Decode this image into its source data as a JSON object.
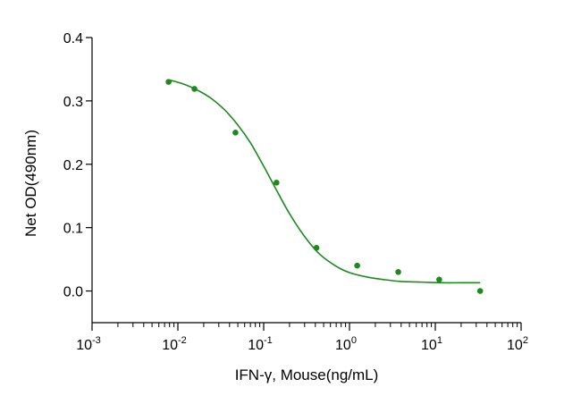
{
  "chart_data": {
    "type": "scatter",
    "xlabel": "IFN-γ, Mouse(ng/mL)",
    "ylabel": "Net OD(490nm)",
    "x_scale": "log",
    "xlim": [
      0.001,
      100
    ],
    "ylim": [
      -0.05,
      0.4
    ],
    "x_ticks": [
      {
        "base": "10",
        "exp": "-3",
        "value": 0.001
      },
      {
        "base": "10",
        "exp": "-2",
        "value": 0.01
      },
      {
        "base": "10",
        "exp": "-1",
        "value": 0.1
      },
      {
        "base": "10",
        "exp": "0",
        "value": 1
      },
      {
        "base": "10",
        "exp": "1",
        "value": 10
      },
      {
        "base": "10",
        "exp": "2",
        "value": 100
      }
    ],
    "y_ticks": [
      {
        "label": "0.0",
        "value": 0.0
      },
      {
        "label": "0.1",
        "value": 0.1
      },
      {
        "label": "0.2",
        "value": 0.2
      },
      {
        "label": "0.3",
        "value": 0.3
      },
      {
        "label": "0.4",
        "value": 0.4
      }
    ],
    "color": "#1e8a1e",
    "points": [
      {
        "x": 0.0078,
        "y": 0.33
      },
      {
        "x": 0.0156,
        "y": 0.319
      },
      {
        "x": 0.0469,
        "y": 0.25
      },
      {
        "x": 0.141,
        "y": 0.171
      },
      {
        "x": 0.412,
        "y": 0.068
      },
      {
        "x": 1.23,
        "y": 0.04
      },
      {
        "x": 3.7,
        "y": 0.03
      },
      {
        "x": 11.1,
        "y": 0.018
      },
      {
        "x": 33.3,
        "y": 0.0
      }
    ],
    "fit_curve": [
      {
        "x": 0.008,
        "y": 0.333
      },
      {
        "x": 0.012,
        "y": 0.326
      },
      {
        "x": 0.018,
        "y": 0.315
      },
      {
        "x": 0.025,
        "y": 0.303
      },
      {
        "x": 0.035,
        "y": 0.286
      },
      {
        "x": 0.05,
        "y": 0.262
      },
      {
        "x": 0.07,
        "y": 0.234
      },
      {
        "x": 0.1,
        "y": 0.197
      },
      {
        "x": 0.14,
        "y": 0.16
      },
      {
        "x": 0.2,
        "y": 0.122
      },
      {
        "x": 0.3,
        "y": 0.086
      },
      {
        "x": 0.45,
        "y": 0.058
      },
      {
        "x": 0.7,
        "y": 0.039
      },
      {
        "x": 1.0,
        "y": 0.029
      },
      {
        "x": 1.6,
        "y": 0.022
      },
      {
        "x": 2.5,
        "y": 0.018
      },
      {
        "x": 4.0,
        "y": 0.015
      },
      {
        "x": 7.0,
        "y": 0.014
      },
      {
        "x": 12.0,
        "y": 0.013
      },
      {
        "x": 20.0,
        "y": 0.013
      },
      {
        "x": 33.3,
        "y": 0.013
      }
    ]
  }
}
